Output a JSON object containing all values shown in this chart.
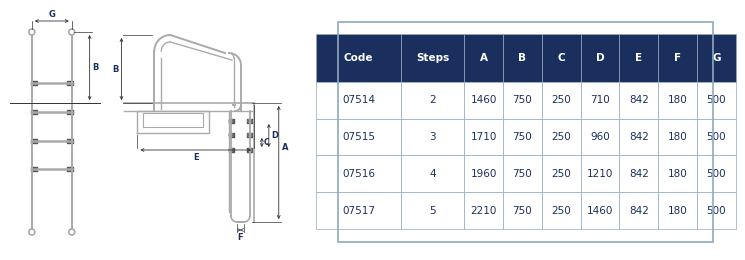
{
  "table_header": [
    "Code",
    "Steps",
    "A",
    "B",
    "C",
    "D",
    "E",
    "F",
    "G"
  ],
  "table_rows": [
    [
      "07514",
      "2",
      "1460",
      "750",
      "250",
      "710",
      "842",
      "180",
      "500"
    ],
    [
      "07515",
      "3",
      "1710",
      "750",
      "250",
      "960",
      "842",
      "180",
      "500"
    ],
    [
      "07516",
      "4",
      "1960",
      "750",
      "250",
      "1210",
      "842",
      "180",
      "500"
    ],
    [
      "07517",
      "5",
      "2210",
      "750",
      "250",
      "1460",
      "842",
      "180",
      "500"
    ]
  ],
  "header_bg": "#1b2f5e",
  "header_fg": "#ffffff",
  "row_bg": "#ffffff",
  "row_fg": "#1b2f5e",
  "border_color": "#8faac0",
  "diagram_color": "#aaaaaa",
  "dim_color": "#333333",
  "label_color": "#1b2f5e",
  "bg_color": "#ffffff"
}
